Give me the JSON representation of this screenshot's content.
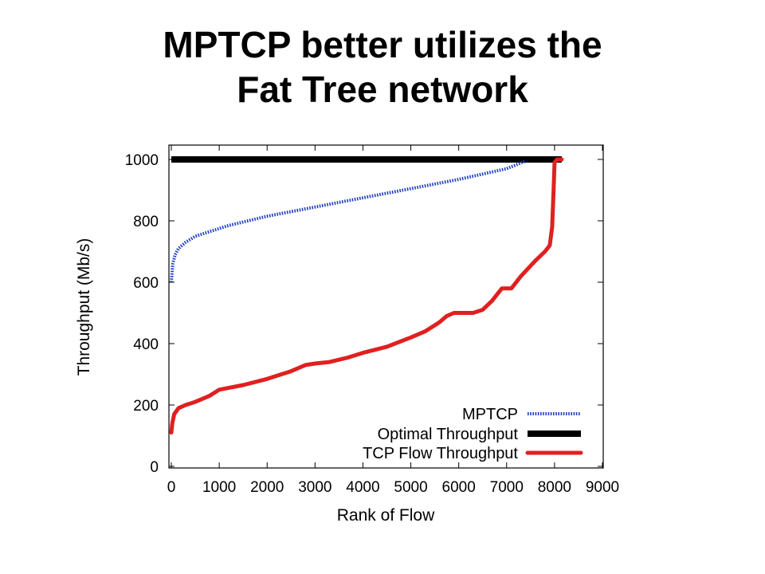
{
  "slide": {
    "title_line1": "MPTCP better utilizes the",
    "title_line2": "Fat Tree network"
  },
  "chart_data": {
    "type": "line",
    "xlabel": "Rank of Flow",
    "ylabel": "Throughput (Mb/s)",
    "xlim": [
      0,
      9000
    ],
    "ylim": [
      0,
      1050
    ],
    "xticks": [
      0,
      1000,
      2000,
      3000,
      4000,
      5000,
      6000,
      7000,
      8000,
      9000
    ],
    "yticks": [
      0,
      200,
      400,
      600,
      800,
      1000
    ],
    "grid": false,
    "legend_position": "bottom-right",
    "series": [
      {
        "name": "MPTCP",
        "color": "#1f3fbf",
        "style": "dotted",
        "x": [
          0,
          30,
          80,
          150,
          300,
          500,
          800,
          1200,
          2000,
          3000,
          4000,
          5000,
          6000,
          7000,
          7400
        ],
        "y": [
          600,
          660,
          690,
          710,
          730,
          750,
          765,
          785,
          815,
          845,
          875,
          905,
          935,
          970,
          995
        ]
      },
      {
        "name": "Optimal Throughput",
        "color": "#000000",
        "style": "solid-thick",
        "x": [
          0,
          8150
        ],
        "y": [
          1000,
          1000
        ]
      },
      {
        "name": "TCP Flow Throughput",
        "color": "#e02020",
        "style": "solid",
        "x": [
          0,
          20,
          60,
          150,
          300,
          500,
          800,
          1000,
          1500,
          2000,
          2500,
          2800,
          3000,
          3300,
          3700,
          4000,
          4500,
          5000,
          5300,
          5600,
          5750,
          5900,
          6300,
          6500,
          6700,
          6900,
          7100,
          7300,
          7600,
          7800,
          7900,
          7950,
          7980,
          8000,
          8050,
          8150
        ],
        "y": [
          110,
          140,
          170,
          190,
          200,
          210,
          230,
          250,
          265,
          285,
          310,
          330,
          335,
          340,
          355,
          370,
          390,
          420,
          440,
          470,
          490,
          500,
          500,
          510,
          540,
          580,
          580,
          620,
          670,
          700,
          720,
          780,
          900,
          990,
          1000,
          1000
        ]
      }
    ]
  }
}
